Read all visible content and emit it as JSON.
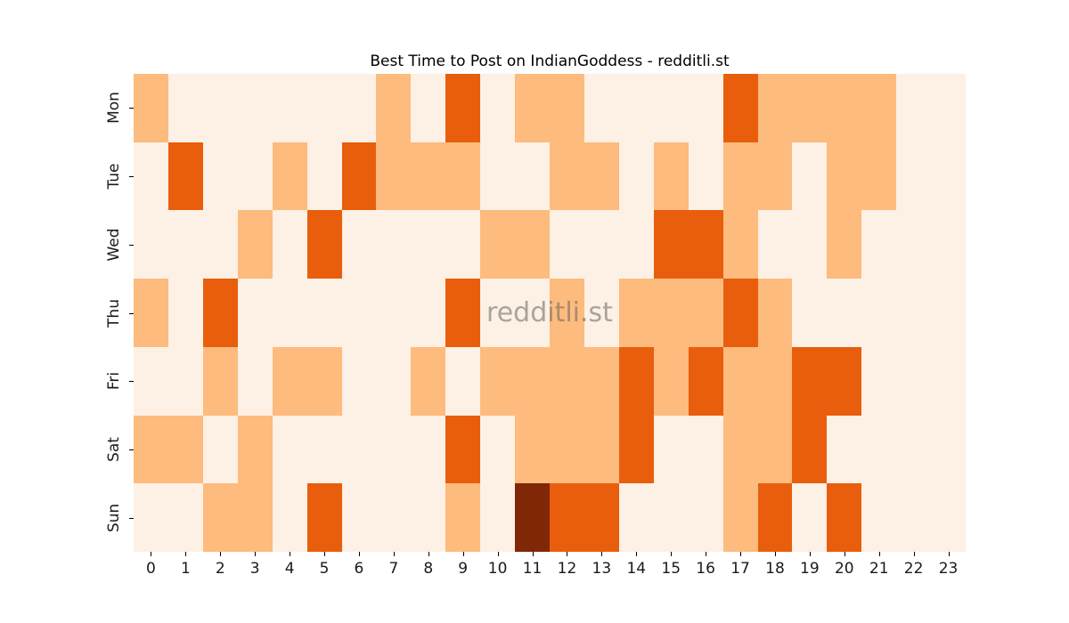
{
  "title": "Best Time to Post on IndianGoddess - redditli.st",
  "watermark": "redditli.st",
  "chart_data": {
    "type": "heatmap",
    "title": "Best Time to Post on IndianGoddess - redditli.st",
    "xlabel": "",
    "ylabel": "",
    "x_labels": [
      "0",
      "1",
      "2",
      "3",
      "4",
      "5",
      "6",
      "7",
      "8",
      "9",
      "10",
      "11",
      "12",
      "13",
      "14",
      "15",
      "16",
      "17",
      "18",
      "19",
      "20",
      "21",
      "22",
      "23"
    ],
    "y_labels": [
      "Mon",
      "Tue",
      "Wed",
      "Thu",
      "Fri",
      "Sat",
      "Sun"
    ],
    "legend_position": "none",
    "grid_lines": "off",
    "intensity_scale_note": "0=lowest activity, 3=highest activity; colors read from Oranges colormap",
    "palette": [
      "#fdf0e4",
      "#fdbb7d",
      "#e85e0d",
      "#7f2706"
    ],
    "grid": [
      [
        1,
        0,
        0,
        0,
        0,
        0,
        0,
        1,
        0,
        2,
        0,
        1,
        1,
        0,
        0,
        0,
        0,
        2,
        1,
        1,
        1,
        1,
        0,
        0
      ],
      [
        0,
        2,
        0,
        0,
        1,
        0,
        2,
        1,
        1,
        1,
        0,
        0,
        1,
        1,
        0,
        1,
        0,
        1,
        1,
        0,
        1,
        1,
        0,
        0
      ],
      [
        0,
        0,
        0,
        1,
        0,
        2,
        0,
        0,
        0,
        0,
        1,
        1,
        0,
        0,
        0,
        2,
        2,
        1,
        0,
        0,
        1,
        0,
        0,
        0
      ],
      [
        1,
        0,
        2,
        0,
        0,
        0,
        0,
        0,
        0,
        2,
        0,
        0,
        1,
        0,
        1,
        1,
        1,
        2,
        1,
        0,
        0,
        0,
        0,
        0
      ],
      [
        0,
        0,
        1,
        0,
        1,
        1,
        0,
        0,
        1,
        0,
        1,
        1,
        1,
        1,
        2,
        1,
        2,
        1,
        1,
        2,
        2,
        0,
        0,
        0
      ],
      [
        1,
        1,
        0,
        1,
        0,
        0,
        0,
        0,
        0,
        2,
        0,
        1,
        1,
        1,
        2,
        0,
        0,
        1,
        1,
        2,
        0,
        0,
        0,
        0
      ],
      [
        0,
        0,
        1,
        1,
        0,
        2,
        0,
        0,
        0,
        1,
        0,
        3,
        2,
        2,
        0,
        0,
        0,
        1,
        2,
        0,
        2,
        0,
        0,
        0
      ]
    ]
  }
}
